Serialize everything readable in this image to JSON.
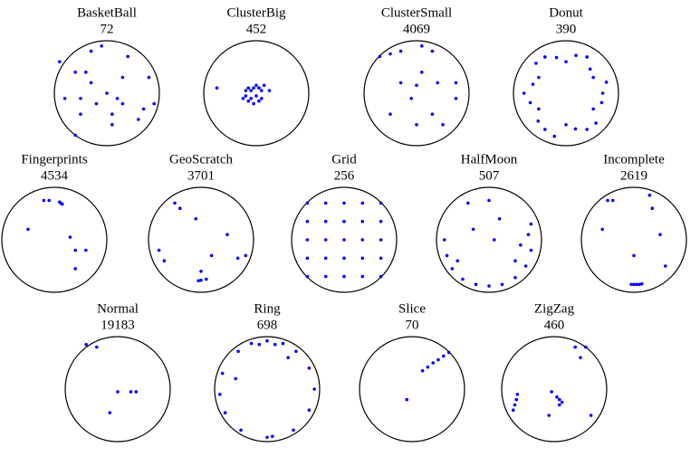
{
  "chart_data": [
    {
      "type": "scatter",
      "title": "BasketBall",
      "subtitle": 72,
      "xlim": [
        -1,
        1
      ],
      "ylim": [
        -1,
        1
      ],
      "color": "#0000ff",
      "x": [
        -0.9,
        -0.6,
        -0.3,
        0,
        0.3,
        0.6,
        -0.8,
        -0.5,
        -0.2,
        0.1,
        0.4,
        0.3,
        0.2,
        0.1,
        -0.3,
        -0.4,
        -0.5,
        -0.6,
        0.8,
        0.7,
        -0.1,
        0.9
      ],
      "y": [
        0.6,
        0.4,
        0.2,
        0,
        -0.2,
        -0.5,
        -0.1,
        -0.1,
        -0.2,
        -0.4,
        0.7,
        0.3,
        -0.1,
        -0.6,
        0.8,
        0.4,
        -0.4,
        -0.8,
        0.3,
        -0.3,
        0.9,
        -0.2
      ]
    },
    {
      "type": "scatter",
      "title": "ClusterBig",
      "subtitle": 452,
      "xlim": [
        -1,
        1
      ],
      "ylim": [
        -1,
        1
      ],
      "color": "#0000ff",
      "x": [
        -0.75,
        -0.2,
        -0.15,
        -0.1,
        -0.05,
        0,
        0.05,
        0.1,
        -0.2,
        -0.1,
        0,
        0.1,
        -0.15,
        -0.05,
        0.05,
        0.25,
        -0.25,
        0.15
      ],
      "y": [
        0.1,
        0.05,
        0.1,
        0.05,
        0.1,
        0.15,
        0.1,
        0.05,
        -0.05,
        -0.1,
        -0.05,
        -0.1,
        -0.15,
        -0.2,
        -0.15,
        0.05,
        -0.1,
        0.15
      ]
    },
    {
      "type": "scatter",
      "title": "ClusterSmall",
      "subtitle": 4069,
      "xlim": [
        -1,
        1
      ],
      "ylim": [
        -1,
        1
      ],
      "color": "#0000ff",
      "x": [
        -0.7,
        -0.5,
        -0.3,
        0.3,
        0.1,
        0.4,
        -0.3,
        0,
        -0.1,
        0.3,
        -0.5,
        0,
        0.5,
        0.75,
        0.75,
        0.1
      ],
      "y": [
        0.7,
        0.75,
        0.8,
        0.8,
        0.4,
        0.2,
        0.2,
        0.15,
        -0.1,
        -0.4,
        -0.4,
        -0.6,
        -0.6,
        -0.1,
        0.2,
        0.9
      ]
    },
    {
      "type": "scatter",
      "title": "Donut",
      "subtitle": 390,
      "xlim": [
        -1,
        1
      ],
      "ylim": [
        -1,
        1
      ],
      "color": "#0000ff",
      "x": [
        0.7,
        0.52,
        0.4,
        0,
        -0.4,
        -0.52,
        -0.8,
        -0.52,
        -0.4,
        0,
        0.4,
        0.52,
        0.77,
        0.46,
        0.19,
        -0.18,
        -0.57,
        -0.63,
        -0.68,
        -0.53,
        -0.22,
        0.18,
        0.57,
        0.68
      ],
      "y": [
        0,
        0.3,
        0.69,
        0.6,
        0.69,
        0.3,
        0,
        -0.3,
        -0.69,
        -0.6,
        -0.69,
        -0.3,
        0.21,
        0.46,
        0.72,
        0.68,
        0.57,
        0.17,
        -0.18,
        -0.53,
        -0.82,
        -0.68,
        -0.57,
        -0.18
      ]
    },
    {
      "type": "scatter",
      "title": "Fingerprints",
      "subtitle": 4534,
      "xlim": [
        -1,
        1
      ],
      "ylim": [
        -1,
        1
      ],
      "color": "#0000ff",
      "x": [
        -0.2,
        0.1,
        0.12,
        0.15,
        -0.1,
        -0.5,
        0.3,
        0.6,
        0.4,
        0.4
      ],
      "y": [
        0.75,
        0.72,
        0.7,
        0.68,
        0.75,
        0.2,
        0.05,
        -0.2,
        -0.55,
        -0.2
      ]
    },
    {
      "type": "scatter",
      "title": "GeoScratch",
      "subtitle": 3701,
      "xlim": [
        -1,
        1
      ],
      "ylim": [
        -1,
        1
      ],
      "color": "#0000ff",
      "x": [
        -0.5,
        -0.4,
        0.5,
        0.85,
        0.7,
        -0.8,
        -0.7,
        0,
        0.1,
        0,
        -0.05,
        0.2,
        -0.1
      ],
      "y": [
        0.7,
        0.6,
        0.1,
        -0.3,
        -0.35,
        -0.2,
        -0.4,
        -0.6,
        -0.75,
        -0.77,
        -0.78,
        -0.3,
        0.4
      ]
    },
    {
      "type": "scatter",
      "title": "Grid",
      "subtitle": 256,
      "xlim": [
        -1,
        1
      ],
      "ylim": [
        -1,
        1
      ],
      "color": "#0000ff",
      "x": [
        -0.7,
        -0.35,
        0,
        0.35,
        0.7,
        -0.7,
        -0.35,
        0,
        0.35,
        0.7,
        -0.7,
        -0.35,
        0,
        0.35,
        0.7,
        -0.7,
        -0.35,
        0,
        0.35,
        0.7,
        -0.7,
        -0.35,
        0,
        0.35,
        0.7
      ],
      "y": [
        0.7,
        0.7,
        0.7,
        0.7,
        0.7,
        0.35,
        0.35,
        0.35,
        0.35,
        0.35,
        0,
        0,
        0,
        0,
        0,
        -0.35,
        -0.35,
        -0.35,
        -0.35,
        -0.35,
        -0.7,
        -0.7,
        -0.7,
        -0.7,
        -0.7
      ]
    },
    {
      "type": "scatter",
      "title": "HalfMoon",
      "subtitle": 507,
      "xlim": [
        -1,
        1
      ],
      "ylim": [
        -1,
        1
      ],
      "color": "#0000ff",
      "x": [
        -0.85,
        -0.8,
        -0.7,
        -0.5,
        -0.25,
        0,
        0.25,
        0.5,
        0.7,
        0.8,
        0.75,
        0.6,
        0.5,
        -0.6,
        -0.4,
        0,
        0.2,
        0.1,
        -0.3,
        0.8
      ],
      "y": [
        0,
        -0.3,
        -0.55,
        -0.75,
        -0.85,
        -0.88,
        -0.85,
        -0.72,
        -0.5,
        -0.2,
        0.1,
        -0.1,
        -0.4,
        -0.4,
        0.7,
        0.75,
        0.4,
        0,
        0.2,
        0.3
      ]
    },
    {
      "type": "scatter",
      "title": "Incomplete",
      "subtitle": 2619,
      "xlim": [
        -1,
        1
      ],
      "ylim": [
        -1,
        1
      ],
      "color": "#0000ff",
      "x": [
        -0.5,
        -0.4,
        0.3,
        0.35,
        -0.6,
        0.5,
        0,
        0,
        0.05,
        0.1,
        -0.05,
        0.15,
        0.6
      ],
      "y": [
        0.75,
        0.75,
        0.85,
        0.6,
        0.2,
        0.1,
        -0.3,
        -0.85,
        -0.85,
        -0.85,
        -0.85,
        -0.84,
        -0.5
      ]
    },
    {
      "type": "scatter",
      "title": "Normal",
      "subtitle": 19183,
      "xlim": [
        -1,
        1
      ],
      "ylim": [
        -1,
        1
      ],
      "color": "#0000ff",
      "x": [
        -0.6,
        -0.4,
        0,
        0.25,
        0.35,
        -0.15
      ],
      "y": [
        0.85,
        0.8,
        -0.05,
        -0.05,
        -0.05,
        -0.45
      ]
    },
    {
      "type": "scatter",
      "title": "Ring",
      "subtitle": 698,
      "xlim": [
        -1,
        1
      ],
      "ylim": [
        -1,
        1
      ],
      "color": "#0000ff",
      "x": [
        0,
        0.3,
        -0.3,
        0.55,
        -0.55,
        0.8,
        -0.85,
        0.9,
        -0.9,
        0.8,
        -0.8,
        0.5,
        -0.5,
        0,
        0.1,
        -0.6,
        0.4,
        0.15,
        -0.15
      ],
      "y": [
        0.92,
        0.87,
        0.87,
        0.72,
        0.72,
        0.4,
        0.3,
        0,
        -0.1,
        -0.4,
        -0.45,
        -0.78,
        -0.78,
        -0.92,
        -0.9,
        0.2,
        0.6,
        0.85,
        0.85
      ]
    },
    {
      "type": "scatter",
      "title": "Slice",
      "subtitle": 70,
      "xlim": [
        -1,
        1
      ],
      "ylim": [
        -1,
        1
      ],
      "color": "#0000ff",
      "x": [
        0.2,
        0.3,
        0.4,
        0.5,
        0.6,
        0.7,
        -0.1
      ],
      "y": [
        0.35,
        0.42,
        0.5,
        0.56,
        0.63,
        0.7,
        -0.2
      ]
    },
    {
      "type": "scatter",
      "title": "ZigZag",
      "subtitle": 460,
      "xlim": [
        -1,
        1
      ],
      "ylim": [
        -1,
        1
      ],
      "color": "#0000ff",
      "x": [
        0.4,
        0.6,
        0.5,
        0.05,
        0.1,
        0.15,
        0.1,
        -0.05,
        -0.7,
        -0.72,
        -0.75,
        -0.78,
        -0.1,
        0.7
      ],
      "y": [
        0.8,
        0.8,
        0.6,
        -0.15,
        -0.2,
        -0.25,
        -0.3,
        -0.05,
        -0.1,
        -0.2,
        -0.3,
        -0.4,
        -0.5,
        -0.5
      ]
    }
  ]
}
